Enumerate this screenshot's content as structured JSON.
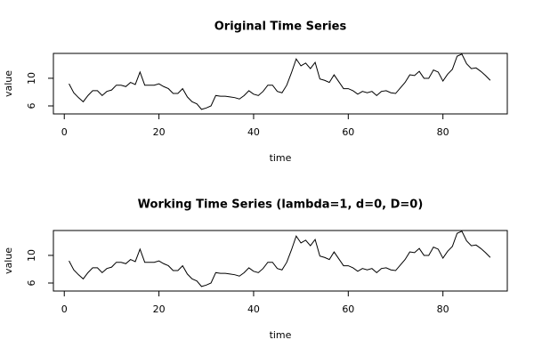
{
  "chart_data": [
    {
      "type": "line",
      "title": "Original Time Series",
      "x_label": "time",
      "y_label": "value",
      "color": "#000000",
      "x": [
        1,
        2,
        3,
        4,
        5,
        6,
        7,
        8,
        9,
        10,
        11,
        12,
        13,
        14,
        15,
        16,
        17,
        18,
        19,
        20,
        21,
        22,
        23,
        24,
        25,
        26,
        27,
        28,
        29,
        30,
        31,
        32,
        33,
        34,
        35,
        36,
        37,
        38,
        39,
        40,
        41,
        42,
        43,
        44,
        45,
        46,
        47,
        48,
        49,
        50,
        51,
        52,
        53,
        54,
        55,
        56,
        57,
        58,
        59,
        60,
        61,
        62,
        63,
        64,
        65,
        66,
        67,
        68,
        69,
        70,
        71,
        72,
        73,
        74,
        75,
        76,
        77,
        78,
        79,
        80,
        81,
        82,
        83,
        84,
        85,
        86,
        87,
        88,
        89,
        90
      ],
      "values": [
        9.2,
        7.9,
        7.2,
        6.6,
        7.5,
        8.2,
        8.2,
        7.5,
        8.1,
        8.3,
        9.0,
        9.0,
        8.8,
        9.4,
        9.1,
        10.9,
        9.0,
        9.0,
        9.0,
        9.2,
        8.8,
        8.5,
        7.8,
        7.8,
        8.5,
        7.3,
        6.6,
        6.3,
        5.5,
        5.7,
        6.0,
        7.5,
        7.4,
        7.4,
        7.3,
        7.2,
        7.0,
        7.5,
        8.2,
        7.7,
        7.5,
        8.1,
        9.0,
        9.0,
        8.1,
        7.9,
        9.0,
        10.8,
        12.8,
        11.8,
        12.2,
        11.4,
        12.3,
        9.9,
        9.7,
        9.4,
        10.5,
        9.5,
        8.5,
        8.5,
        8.2,
        7.7,
        8.1,
        7.9,
        8.1,
        7.5,
        8.1,
        8.2,
        7.9,
        7.8,
        8.6,
        9.4,
        10.5,
        10.4,
        11.0,
        10.0,
        10.0,
        11.2,
        10.9,
        9.6,
        10.6,
        11.3,
        13.2,
        13.5,
        12.1,
        11.4,
        11.5,
        11.0,
        10.4,
        9.7
      ],
      "xlim": [
        -2.3,
        93.6
      ],
      "ylim": [
        4.84,
        13.6
      ],
      "xticks": [
        0,
        20,
        40,
        60,
        80
      ],
      "yticks": [
        6,
        10
      ]
    },
    {
      "type": "line",
      "title": "Working Time Series (lambda=1, d=0, D=0)",
      "x_label": "time",
      "y_label": "value",
      "color": "#000000",
      "x": [
        1,
        2,
        3,
        4,
        5,
        6,
        7,
        8,
        9,
        10,
        11,
        12,
        13,
        14,
        15,
        16,
        17,
        18,
        19,
        20,
        21,
        22,
        23,
        24,
        25,
        26,
        27,
        28,
        29,
        30,
        31,
        32,
        33,
        34,
        35,
        36,
        37,
        38,
        39,
        40,
        41,
        42,
        43,
        44,
        45,
        46,
        47,
        48,
        49,
        50,
        51,
        52,
        53,
        54,
        55,
        56,
        57,
        58,
        59,
        60,
        61,
        62,
        63,
        64,
        65,
        66,
        67,
        68,
        69,
        70,
        71,
        72,
        73,
        74,
        75,
        76,
        77,
        78,
        79,
        80,
        81,
        82,
        83,
        84,
        85,
        86,
        87,
        88,
        89,
        90
      ],
      "values": [
        9.2,
        7.9,
        7.2,
        6.6,
        7.5,
        8.2,
        8.2,
        7.5,
        8.1,
        8.3,
        9.0,
        9.0,
        8.8,
        9.4,
        9.1,
        10.9,
        9.0,
        9.0,
        9.0,
        9.2,
        8.8,
        8.5,
        7.8,
        7.8,
        8.5,
        7.3,
        6.6,
        6.3,
        5.5,
        5.7,
        6.0,
        7.5,
        7.4,
        7.4,
        7.3,
        7.2,
        7.0,
        7.5,
        8.2,
        7.7,
        7.5,
        8.1,
        9.0,
        9.0,
        8.1,
        7.9,
        9.0,
        10.8,
        12.8,
        11.8,
        12.2,
        11.4,
        12.3,
        9.9,
        9.7,
        9.4,
        10.5,
        9.5,
        8.5,
        8.5,
        8.2,
        7.7,
        8.1,
        7.9,
        8.1,
        7.5,
        8.1,
        8.2,
        7.9,
        7.8,
        8.6,
        9.4,
        10.5,
        10.4,
        11.0,
        10.0,
        10.0,
        11.2,
        10.9,
        9.6,
        10.6,
        11.3,
        13.2,
        13.5,
        12.1,
        11.4,
        11.5,
        11.0,
        10.4,
        9.7
      ],
      "xlim": [
        -2.3,
        93.6
      ],
      "ylim": [
        4.84,
        13.6
      ],
      "xticks": [
        0,
        20,
        40,
        60,
        80
      ],
      "yticks": [
        6,
        10
      ]
    }
  ]
}
